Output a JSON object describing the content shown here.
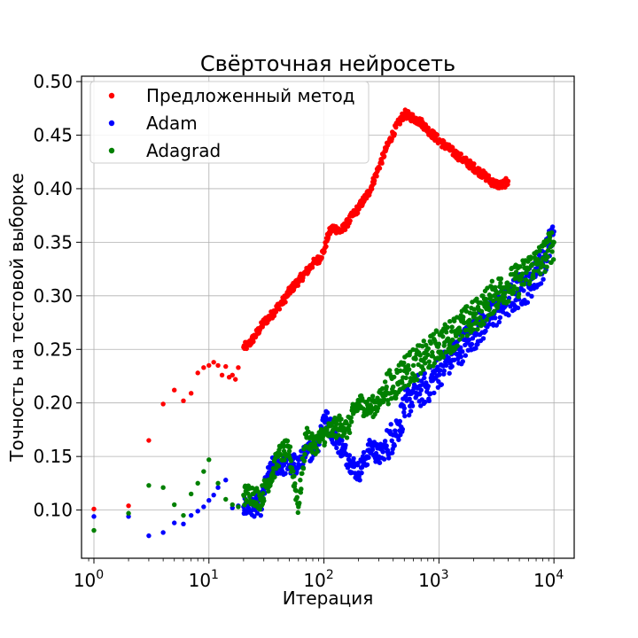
{
  "chart_data": {
    "type": "scatter",
    "title": "Свёрточная нейросеть",
    "xlabel": "Итерация",
    "ylabel": "Точность на тестовой выборке",
    "xscale": "log",
    "xlim": [
      0.78,
      15000
    ],
    "ylim": [
      0.055,
      0.505
    ],
    "x_ticks": [
      1,
      10,
      100,
      1000,
      10000
    ],
    "x_tick_labels": [
      {
        "base": "10",
        "exp": "0"
      },
      {
        "base": "10",
        "exp": "1"
      },
      {
        "base": "10",
        "exp": "2"
      },
      {
        "base": "10",
        "exp": "3"
      },
      {
        "base": "10",
        "exp": "4"
      }
    ],
    "y_ticks": [
      0.1,
      0.15,
      0.2,
      0.25,
      0.3,
      0.35,
      0.4,
      0.45,
      0.5
    ],
    "y_tick_labels": [
      "0.10",
      "0.15",
      "0.20",
      "0.25",
      "0.30",
      "0.35",
      "0.40",
      "0.45",
      "0.50"
    ],
    "grid": true,
    "legend_position": "top-left",
    "series": [
      {
        "name": "Предложенный метод",
        "color": "#ff0000",
        "points": [
          [
            1,
            0.101
          ],
          [
            2,
            0.104
          ],
          [
            3,
            0.165
          ],
          [
            4,
            0.199
          ],
          [
            5,
            0.212
          ],
          [
            6,
            0.202
          ],
          [
            7,
            0.209
          ],
          [
            8,
            0.228
          ],
          [
            9,
            0.233
          ],
          [
            10,
            0.235
          ],
          [
            11,
            0.238
          ],
          [
            12,
            0.235
          ],
          [
            13,
            0.226
          ],
          [
            14,
            0.234
          ],
          [
            15,
            0.224
          ],
          [
            16,
            0.226
          ],
          [
            17,
            0.222
          ],
          [
            18,
            0.233
          ],
          [
            20,
            0.252
          ],
          [
            22,
            0.254
          ],
          [
            25,
            0.262
          ],
          [
            28,
            0.27
          ],
          [
            30,
            0.275
          ],
          [
            35,
            0.282
          ],
          [
            40,
            0.29
          ],
          [
            45,
            0.296
          ],
          [
            50,
            0.304
          ],
          [
            60,
            0.314
          ],
          [
            70,
            0.322
          ],
          [
            80,
            0.33
          ],
          [
            90,
            0.334
          ],
          [
            100,
            0.342
          ],
          [
            110,
            0.358
          ],
          [
            120,
            0.364
          ],
          [
            140,
            0.36
          ],
          [
            160,
            0.368
          ],
          [
            180,
            0.376
          ],
          [
            200,
            0.382
          ],
          [
            250,
            0.398
          ],
          [
            300,
            0.42
          ],
          [
            350,
            0.438
          ],
          [
            400,
            0.452
          ],
          [
            450,
            0.462
          ],
          [
            500,
            0.47
          ],
          [
            600,
            0.466
          ],
          [
            700,
            0.462
          ],
          [
            800,
            0.455
          ],
          [
            1000,
            0.445
          ],
          [
            1200,
            0.438
          ],
          [
            1500,
            0.43
          ],
          [
            2000,
            0.42
          ],
          [
            2500,
            0.412
          ],
          [
            3000,
            0.405
          ],
          [
            3500,
            0.403
          ],
          [
            4000,
            0.407
          ]
        ]
      },
      {
        "name": "Adam",
        "color": "#0000ff",
        "points": [
          [
            1,
            0.094
          ],
          [
            2,
            0.094
          ],
          [
            3,
            0.076
          ],
          [
            4,
            0.079
          ],
          [
            5,
            0.088
          ],
          [
            6,
            0.087
          ],
          [
            7,
            0.095
          ],
          [
            8,
            0.099
          ],
          [
            9,
            0.103
          ],
          [
            10,
            0.109
          ],
          [
            11,
            0.114
          ],
          [
            12,
            0.121
          ],
          [
            14,
            0.128
          ],
          [
            16,
            0.102
          ],
          [
            18,
            0.104
          ],
          [
            20,
            0.103
          ],
          [
            22,
            0.102
          ],
          [
            25,
            0.104
          ],
          [
            28,
            0.103
          ],
          [
            30,
            0.117
          ],
          [
            33,
            0.132
          ],
          [
            36,
            0.14
          ],
          [
            40,
            0.143
          ],
          [
            45,
            0.142
          ],
          [
            50,
            0.142
          ],
          [
            60,
            0.143
          ],
          [
            70,
            0.152
          ],
          [
            80,
            0.158
          ],
          [
            90,
            0.165
          ],
          [
            100,
            0.188
          ],
          [
            110,
            0.18
          ],
          [
            130,
            0.165
          ],
          [
            150,
            0.155
          ],
          [
            170,
            0.145
          ],
          [
            200,
            0.135
          ],
          [
            230,
            0.148
          ],
          [
            260,
            0.16
          ],
          [
            300,
            0.15
          ],
          [
            350,
            0.16
          ],
          [
            400,
            0.17
          ],
          [
            450,
            0.18
          ],
          [
            500,
            0.195
          ],
          [
            600,
            0.21
          ],
          [
            700,
            0.212
          ],
          [
            800,
            0.215
          ],
          [
            1000,
            0.23
          ],
          [
            1200,
            0.24
          ],
          [
            1500,
            0.25
          ],
          [
            2000,
            0.265
          ],
          [
            2500,
            0.275
          ],
          [
            3000,
            0.285
          ],
          [
            4000,
            0.295
          ],
          [
            5000,
            0.305
          ],
          [
            6000,
            0.31
          ],
          [
            7000,
            0.32
          ],
          [
            8000,
            0.33
          ],
          [
            9000,
            0.345
          ],
          [
            10000,
            0.36
          ]
        ]
      },
      {
        "name": "Adagrad",
        "color": "#008000",
        "points": [
          [
            1,
            0.081
          ],
          [
            2,
            0.097
          ],
          [
            3,
            0.123
          ],
          [
            4,
            0.121
          ],
          [
            5,
            0.105
          ],
          [
            6,
            0.095
          ],
          [
            7,
            0.115
          ],
          [
            8,
            0.125
          ],
          [
            9,
            0.136
          ],
          [
            10,
            0.147
          ],
          [
            12,
            0.125
          ],
          [
            14,
            0.11
          ],
          [
            16,
            0.105
          ],
          [
            18,
            0.103
          ],
          [
            20,
            0.114
          ],
          [
            24,
            0.115
          ],
          [
            28,
            0.11
          ],
          [
            32,
            0.125
          ],
          [
            36,
            0.135
          ],
          [
            40,
            0.15
          ],
          [
            45,
            0.155
          ],
          [
            50,
            0.155
          ],
          [
            60,
            0.103
          ],
          [
            70,
            0.17
          ],
          [
            80,
            0.16
          ],
          [
            90,
            0.165
          ],
          [
            100,
            0.17
          ],
          [
            120,
            0.175
          ],
          [
            140,
            0.18
          ],
          [
            160,
            0.175
          ],
          [
            180,
            0.19
          ],
          [
            200,
            0.2
          ],
          [
            250,
            0.195
          ],
          [
            300,
            0.2
          ],
          [
            350,
            0.215
          ],
          [
            400,
            0.215
          ],
          [
            500,
            0.23
          ],
          [
            600,
            0.235
          ],
          [
            700,
            0.24
          ],
          [
            800,
            0.245
          ],
          [
            1000,
            0.255
          ],
          [
            1200,
            0.26
          ],
          [
            1500,
            0.27
          ],
          [
            2000,
            0.28
          ],
          [
            2500,
            0.29
          ],
          [
            3000,
            0.3
          ],
          [
            4000,
            0.31
          ],
          [
            5000,
            0.315
          ],
          [
            6000,
            0.325
          ],
          [
            7000,
            0.33
          ],
          [
            8000,
            0.335
          ],
          [
            10000,
            0.35
          ]
        ]
      }
    ]
  }
}
